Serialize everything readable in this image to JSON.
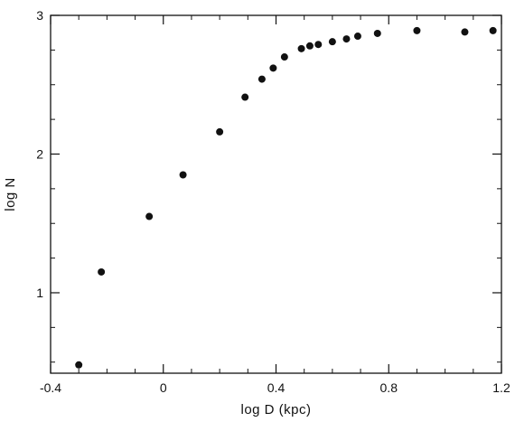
{
  "chart_data": {
    "type": "scatter",
    "title": "",
    "xlabel": "log D (kpc)",
    "ylabel": "log N",
    "xlim": [
      -0.4,
      1.2
    ],
    "ylim": [
      0.42,
      3.0
    ],
    "grid": false,
    "legend": "none",
    "x_ticks": [
      -0.4,
      0,
      0.4,
      0.8,
      1.2
    ],
    "x_tick_labels": [
      "-0.4",
      "0",
      "0.4",
      "0.8",
      "1.2"
    ],
    "y_ticks": [
      1,
      2,
      3
    ],
    "y_tick_labels": [
      "1",
      "2",
      "3"
    ],
    "x_minor_step": 0.1,
    "y_minor_step": 0.25,
    "marker_color": "#111111",
    "series": [
      {
        "points": [
          {
            "x": -0.3,
            "y": 0.48
          },
          {
            "x": -0.22,
            "y": 1.15
          },
          {
            "x": -0.05,
            "y": 1.55
          },
          {
            "x": 0.07,
            "y": 1.85
          },
          {
            "x": 0.2,
            "y": 2.16
          },
          {
            "x": 0.29,
            "y": 2.41
          },
          {
            "x": 0.35,
            "y": 2.54
          },
          {
            "x": 0.39,
            "y": 2.62
          },
          {
            "x": 0.43,
            "y": 2.7
          },
          {
            "x": 0.49,
            "y": 2.76
          },
          {
            "x": 0.52,
            "y": 2.78
          },
          {
            "x": 0.55,
            "y": 2.79
          },
          {
            "x": 0.6,
            "y": 2.81
          },
          {
            "x": 0.65,
            "y": 2.83
          },
          {
            "x": 0.69,
            "y": 2.85
          },
          {
            "x": 0.76,
            "y": 2.87
          },
          {
            "x": 0.9,
            "y": 2.89
          },
          {
            "x": 1.07,
            "y": 2.88
          },
          {
            "x": 1.17,
            "y": 2.89
          }
        ]
      }
    ]
  }
}
